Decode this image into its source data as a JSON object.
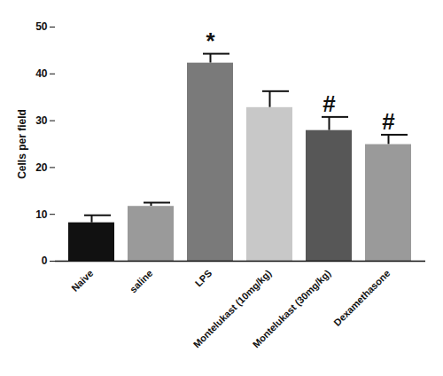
{
  "chart_data": {
    "type": "bar",
    "y_label": "Cells per field",
    "categories": [
      "Naive",
      "saline",
      "LPS",
      "Montelukast (10mg/kg)",
      "Montelukast (30mg/kg)",
      "Dexamethasone"
    ],
    "values": [
      8.2,
      11.7,
      42.3,
      32.8,
      27.9,
      24.9
    ],
    "errors": [
      1.6,
      0.8,
      2.0,
      3.5,
      2.9,
      2.1
    ],
    "colors": [
      "#111111",
      "#9a9a9a",
      "#7a7a7a",
      "#c8c8c8",
      "#575757",
      "#9a9a9a"
    ],
    "ylim": [
      0,
      50
    ],
    "yticks": [
      0,
      10,
      20,
      30,
      40,
      50
    ],
    "grid": false,
    "annotations": [
      {
        "category": "LPS",
        "text": "*"
      },
      {
        "category": "Montelukast (30mg/kg)",
        "text": "#"
      },
      {
        "category": "Dexamethasone",
        "text": "#"
      }
    ]
  }
}
